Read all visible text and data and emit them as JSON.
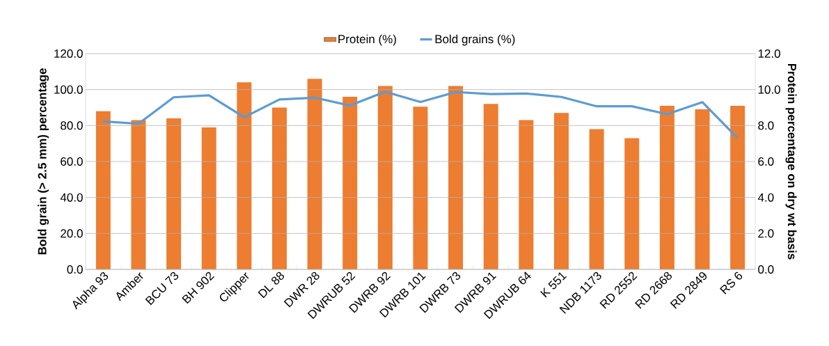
{
  "chart_data": {
    "type": "bar",
    "categories": [
      "Alpha 93",
      "Amber",
      "BCU 73",
      "BH 902",
      "Clipper",
      "DL 88",
      "DWR 28",
      "DWRUB 52",
      "DWRB 92",
      "DWRB 101",
      "DWRB 73",
      "DWRB 91",
      "DWRUB 64",
      "K 551",
      "NDB 1173",
      "RD 2552",
      "RD 2668",
      "RD 2849",
      "RS 6"
    ],
    "series": [
      {
        "name": "Protein (%)",
        "axis": "y2",
        "color": "#ed7d31",
        "values": [
          8.8,
          8.3,
          8.4,
          7.9,
          10.4,
          9.0,
          10.6,
          9.6,
          10.2,
          9.05,
          10.2,
          9.2,
          8.3,
          8.7,
          7.8,
          7.3,
          9.1,
          8.9,
          9.1
        ]
      },
      {
        "name": "Bold grains (%)",
        "type": "line",
        "color": "#5b9bd5",
        "values": [
          82.3,
          81.0,
          95.7,
          96.8,
          84.6,
          94.5,
          95.5,
          91.1,
          98.8,
          93.1,
          98.6,
          97.5,
          97.8,
          95.9,
          90.7,
          90.7,
          86.3,
          93.0,
          73.0
        ]
      }
    ],
    "ylabel": "Bold grain (> 2.5 mm)  percentage",
    "y2label": "Protein percentage on dry wt basis",
    "ylim": [
      0,
      120
    ],
    "yticks": [
      {
        "value": 0,
        "label": "0.0"
      },
      {
        "value": 20,
        "label": "20.0"
      },
      {
        "value": 40,
        "label": "40.0"
      },
      {
        "value": 60,
        "label": "60.0"
      },
      {
        "value": 80,
        "label": "80.0"
      },
      {
        "value": 100,
        "label": "100.0"
      },
      {
        "value": 120,
        "label": "120.0"
      }
    ],
    "y2lim": [
      0,
      12
    ],
    "y2ticks": [
      {
        "value": 0,
        "label": "0.0"
      },
      {
        "value": 2,
        "label": "2.0"
      },
      {
        "value": 4,
        "label": "4.0"
      },
      {
        "value": 6,
        "label": "6.0"
      },
      {
        "value": 8,
        "label": "8.0"
      },
      {
        "value": 10,
        "label": "10.0"
      },
      {
        "value": 12,
        "label": "12.0"
      }
    ],
    "grid": "y",
    "legend": "top"
  }
}
